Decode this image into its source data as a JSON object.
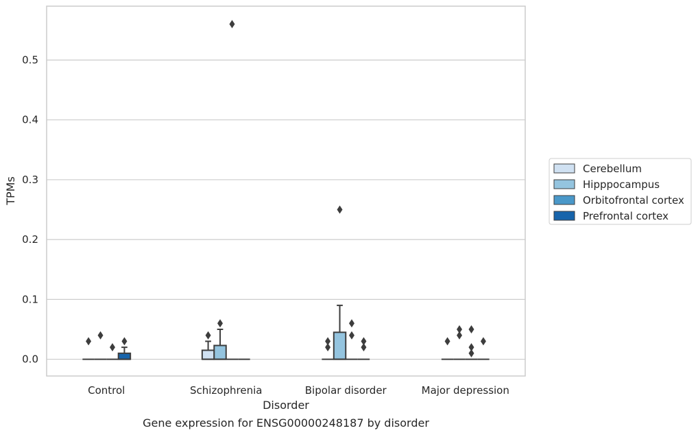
{
  "chart_data": {
    "type": "box",
    "title": "Gene expression for ENSG00000248187 by disorder",
    "xlabel": "Disorder",
    "ylabel": "TPMs",
    "categories": [
      "Control",
      "Schizophrenia",
      "Bipolar disorder",
      "Major depression"
    ],
    "ylim": [
      -0.028,
      0.59
    ],
    "yticks": [
      0.0,
      0.1,
      0.2,
      0.3,
      0.4,
      0.5
    ],
    "ytick_labels": [
      "0.0",
      "0.1",
      "0.2",
      "0.3",
      "0.4",
      "0.5"
    ],
    "grid": true,
    "legend_position": "right",
    "series": [
      {
        "name": "Cerebellum",
        "color": "#d0e1f2",
        "boxes": [
          {
            "q1": 0,
            "median": 0,
            "q3": 0,
            "whisker_low": 0,
            "whisker_high": 0,
            "outliers": [
              0.03
            ]
          },
          {
            "q1": 0,
            "median": 0,
            "q3": 0.015,
            "whisker_low": 0,
            "whisker_high": 0.03,
            "outliers": [
              0.04
            ]
          },
          {
            "q1": 0,
            "median": 0,
            "q3": 0,
            "whisker_low": 0,
            "whisker_high": 0,
            "outliers": [
              0.02,
              0.03
            ]
          },
          {
            "q1": 0,
            "median": 0,
            "q3": 0,
            "whisker_low": 0,
            "whisker_high": 0,
            "outliers": [
              0.03
            ]
          }
        ]
      },
      {
        "name": "Hipppocampus",
        "color": "#94c4df",
        "boxes": [
          {
            "q1": 0,
            "median": 0,
            "q3": 0,
            "whisker_low": 0,
            "whisker_high": 0,
            "outliers": [
              0.04
            ]
          },
          {
            "q1": 0,
            "median": 0,
            "q3": 0.023,
            "whisker_low": 0,
            "whisker_high": 0.05,
            "outliers": [
              0.06
            ]
          },
          {
            "q1": 0,
            "median": 0,
            "q3": 0.045,
            "whisker_low": 0,
            "whisker_high": 0.09,
            "outliers": [
              0.25
            ]
          },
          {
            "q1": 0,
            "median": 0,
            "q3": 0,
            "whisker_low": 0,
            "whisker_high": 0,
            "outliers": [
              0.04,
              0.05
            ]
          }
        ]
      },
      {
        "name": "Orbitofrontal cortex",
        "color": "#4a98c9",
        "boxes": [
          {
            "q1": 0,
            "median": 0,
            "q3": 0,
            "whisker_low": 0,
            "whisker_high": 0,
            "outliers": [
              0.02
            ]
          },
          {
            "q1": 0,
            "median": 0,
            "q3": 0,
            "whisker_low": 0,
            "whisker_high": 0,
            "outliers": [
              0.56
            ]
          },
          {
            "q1": 0,
            "median": 0,
            "q3": 0,
            "whisker_low": 0,
            "whisker_high": 0,
            "outliers": [
              0.04,
              0.06
            ]
          },
          {
            "q1": 0,
            "median": 0,
            "q3": 0,
            "whisker_low": 0,
            "whisker_high": 0,
            "outliers": [
              0.01,
              0.02,
              0.05
            ]
          }
        ]
      },
      {
        "name": "Prefrontal cortex",
        "color": "#1764ab",
        "boxes": [
          {
            "q1": 0,
            "median": 0,
            "q3": 0.01,
            "whisker_low": 0,
            "whisker_high": 0.02,
            "outliers": [
              0.03
            ]
          },
          {
            "q1": 0,
            "median": 0,
            "q3": 0,
            "whisker_low": 0,
            "whisker_high": 0,
            "outliers": []
          },
          {
            "q1": 0,
            "median": 0,
            "q3": 0,
            "whisker_low": 0,
            "whisker_high": 0,
            "outliers": [
              0.02,
              0.03
            ]
          },
          {
            "q1": 0,
            "median": 0,
            "q3": 0,
            "whisker_low": 0,
            "whisker_high": 0,
            "outliers": [
              0.03
            ]
          }
        ]
      }
    ]
  }
}
